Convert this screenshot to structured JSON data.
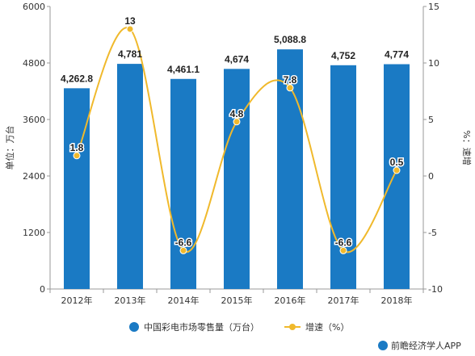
{
  "chart_data": {
    "type": "bar",
    "categories": [
      "2012年",
      "2013年",
      "2014年",
      "2015年",
      "2016年",
      "2017年",
      "2018年"
    ],
    "series": [
      {
        "name": "中国彩电市场零售量（万台）",
        "type": "bar",
        "axis": "left",
        "values": [
          4262.8,
          4781,
          4461.1,
          4674,
          5088.8,
          4752,
          4774
        ],
        "labels": [
          "4,262.8",
          "4,781",
          "4,461.1",
          "4,674",
          "5,088.8",
          "4,752",
          "4,774"
        ],
        "color": "#1a7ac4"
      },
      {
        "name": "增速（%）",
        "type": "line",
        "axis": "right",
        "values": [
          1.8,
          13,
          -6.6,
          4.8,
          7.8,
          -6.6,
          0.5
        ],
        "labels": [
          "1.8",
          "13",
          "-6.6",
          "4.8",
          "7.8",
          "-6.6",
          "0.5"
        ],
        "color": "#f0b92c"
      }
    ],
    "yleft": {
      "label": "单位：万台",
      "min": 0,
      "max": 6000,
      "ticks": [
        0,
        1200,
        2400,
        3600,
        4800,
        6000
      ]
    },
    "yright": {
      "label": "%：速增",
      "min": -10,
      "max": 15,
      "ticks": [
        -10,
        -5,
        0,
        5,
        10,
        15
      ]
    },
    "legend_position": "bottom",
    "grid": false
  },
  "footer": {
    "source_label": "前瞻经济学人APP",
    "logo_icon": "qianzhan-logo-icon"
  }
}
